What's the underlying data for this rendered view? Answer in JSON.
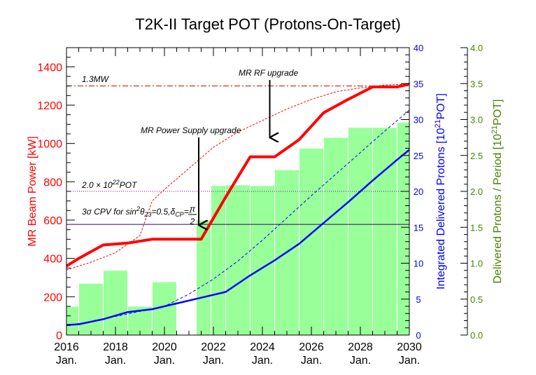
{
  "chart_data": {
    "type": "bar",
    "title": "T2K-II Target POT (Protons-On-Target)",
    "x_axis": {
      "range": [
        2016,
        2030
      ],
      "ticks": [
        2016,
        2018,
        2020,
        2022,
        2024,
        2026,
        2028,
        2030
      ],
      "tick_labels": [
        "2016",
        "2018",
        "2020",
        "2022",
        "2024",
        "2026",
        "2028",
        "2030"
      ],
      "tick_sublabel": "Jan."
    },
    "left_axis": {
      "label": "MR Beam Power [kW]",
      "range": [
        0,
        1500
      ],
      "ticks": [
        0,
        200,
        400,
        600,
        800,
        1000,
        1200,
        1400
      ],
      "tick_labels": [
        "0",
        "200",
        "400",
        "600",
        "800",
        "1000",
        "1200",
        "1400"
      ],
      "color": "#ff0000"
    },
    "right_axis_1": {
      "label_prefix": "Integrated Delivered Protons [10",
      "label_sup": "21",
      "label_suffix": "POT]",
      "range": [
        0,
        40
      ],
      "ticks": [
        0,
        5,
        10,
        15,
        20,
        25,
        30,
        35,
        40
      ],
      "tick_labels": [
        "0",
        "5",
        "10",
        "15",
        "20",
        "25",
        "30",
        "35",
        "40"
      ],
      "color": "#0000ff"
    },
    "right_axis_2": {
      "label_prefix": "Delivered Protons / Period [10",
      "label_sup": "21",
      "label_suffix": "POT]",
      "range": [
        0,
        4
      ],
      "ticks": [
        0,
        0.5,
        1,
        1.5,
        2,
        2.5,
        3,
        3.5,
        4
      ],
      "tick_labels": [
        "0.0",
        "0.5",
        "1.0",
        "1.5",
        "2.0",
        "2.5",
        "3.0",
        "3.5",
        "4.0"
      ],
      "color": "#4c7f00"
    },
    "bars": {
      "name": "Delivered Protons / Period",
      "color": "#99ff99",
      "data": [
        {
          "x0": 2016.0,
          "x1": 2016.5,
          "value": 0.4
        },
        {
          "x0": 2016.5,
          "x1": 2017.5,
          "value": 0.72
        },
        {
          "x0": 2017.5,
          "x1": 2018.5,
          "value": 0.9
        },
        {
          "x0": 2018.5,
          "x1": 2019.5,
          "value": 0.4
        },
        {
          "x0": 2019.5,
          "x1": 2020.5,
          "value": 0.74
        },
        {
          "x0": 2021.3,
          "x1": 2021.9,
          "value": 1.6
        },
        {
          "x0": 2021.9,
          "x1": 2022.5,
          "value": 2.08
        },
        {
          "x0": 2022.5,
          "x1": 2023.5,
          "value": 2.09
        },
        {
          "x0": 2023.5,
          "x1": 2024.5,
          "value": 2.08
        },
        {
          "x0": 2024.5,
          "x1": 2025.5,
          "value": 2.3
        },
        {
          "x0": 2025.5,
          "x1": 2026.5,
          "value": 2.6
        },
        {
          "x0": 2026.5,
          "x1": 2027.5,
          "value": 2.75
        },
        {
          "x0": 2027.5,
          "x1": 2028.5,
          "value": 2.89
        },
        {
          "x0": 2028.5,
          "x1": 2029.5,
          "value": 2.89
        },
        {
          "x0": 2029.5,
          "x1": 2030.0,
          "value": 2.96
        }
      ]
    },
    "series": [
      {
        "name": "MR Beam Power",
        "axis": "left",
        "color": "#ff0000",
        "style": "solid",
        "x": [
          2016.0,
          2016.5,
          2017.5,
          2018.5,
          2019.5,
          2020.5,
          2021.5,
          2022.5,
          2023.5,
          2024.5,
          2025.5,
          2026.5,
          2027.5,
          2028.5,
          2029.5,
          2030.0
        ],
        "values": [
          360,
          400,
          470,
          480,
          500,
          500,
          500,
          720,
          930,
          930,
          1020,
          1160,
          1230,
          1295,
          1295,
          1310
        ]
      },
      {
        "name": "MR Beam Power",
        "axis": "left",
        "color": "#ff0000",
        "style": "dashed",
        "x": [
          2016.0,
          2017.0,
          2018.0,
          2019.0,
          2019.5,
          2020.0,
          2021.0,
          2022.0,
          2023.0,
          2024.0,
          2025.0,
          2026.0,
          2027.0,
          2028.0,
          2029.0,
          2030.0
        ],
        "values": [
          340,
          380,
          430,
          520,
          700,
          760,
          870,
          980,
          1060,
          1120,
          1180,
          1230,
          1270,
          1290,
          1305,
          1310
        ]
      },
      {
        "name": "Integrated Delivered Protons",
        "axis": "right1",
        "color": "#0000ff",
        "style": "solid",
        "x": [
          2016.0,
          2016.5,
          2017.5,
          2018.5,
          2019.5,
          2020.5,
          2021.5,
          2022.5,
          2023.5,
          2024.5,
          2025.5,
          2026.5,
          2027.5,
          2028.5,
          2029.5,
          2030.0
        ],
        "values": [
          1.4,
          1.5,
          2.2,
          3.2,
          3.6,
          4.4,
          5.2,
          6.0,
          8.3,
          10.4,
          12.7,
          15.6,
          18.5,
          21.5,
          24.4,
          25.8
        ]
      },
      {
        "name": "Integrated Delivered Protons",
        "axis": "right1",
        "color": "#0000ff",
        "style": "dashed",
        "x": [
          2016.0,
          2017.0,
          2018.0,
          2019.0,
          2020.0,
          2021.0,
          2022.0,
          2023.0,
          2024.0,
          2025.0,
          2026.0,
          2027.0,
          2028.0,
          2029.0,
          2030.0
        ],
        "values": [
          1.4,
          1.8,
          2.6,
          3.3,
          4.0,
          5.7,
          7.8,
          10.3,
          13.2,
          16.3,
          19.4,
          22.4,
          25.4,
          28.4,
          31.3
        ]
      }
    ],
    "reference_lines": [
      {
        "label": "1.3MW",
        "axis": "left",
        "value": 1300,
        "color": "#cc0000",
        "style": "dashdot"
      },
      {
        "label_prefix": "2.0 × 10",
        "label_sup": "22",
        "label_suffix": "POT",
        "axis": "right1",
        "value": 20,
        "color": "#6600cc",
        "style": "dotted"
      },
      {
        "label_prefix": "3σ CPV for sin",
        "label_sup1": "2",
        "label_mid": "θ",
        "label_sub1": "23",
        "label_mid2": "=0.5,δ",
        "label_sub2": "CP",
        "label_mid3": "=-",
        "label_frac_num": "π",
        "label_frac_den": "2",
        "axis": "right1",
        "value": 15.4,
        "color": "#330066",
        "style": "solid"
      }
    ],
    "annotations": [
      {
        "text": "MR RF upgrade",
        "arrow_x": 2024.3,
        "arrow_from": 35.5,
        "arrow_to": 27.5
      },
      {
        "text": "MR Power Supply upgrade",
        "arrow_x": 2021.4,
        "arrow_from": 27.5,
        "arrow_to": 15.3
      }
    ]
  }
}
